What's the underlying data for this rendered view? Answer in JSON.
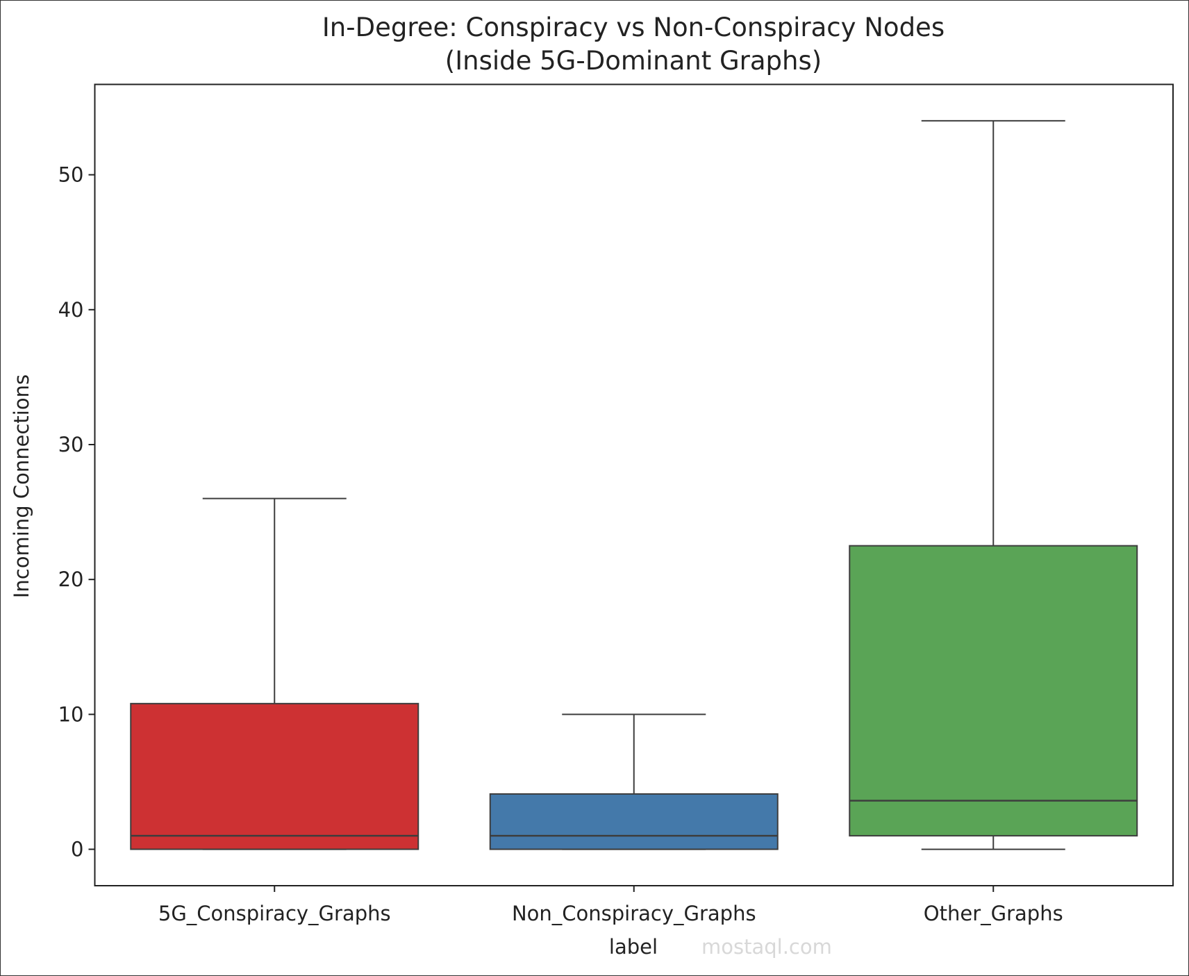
{
  "chart_data": {
    "type": "box",
    "title": "In-Degree: Conspiracy vs Non-Conspiracy Nodes\n(Inside 5G-Dominant Graphs)",
    "title_lines": [
      "In-Degree: Conspiracy vs Non-Conspiracy Nodes",
      "(Inside 5G-Dominant Graphs)"
    ],
    "xlabel": "label",
    "ylabel": "Incoming Connections",
    "categories": [
      "5G_Conspiracy_Graphs",
      "Non_Conspiracy_Graphs",
      "Other_Graphs"
    ],
    "boxes": [
      {
        "category": "5G_Conspiracy_Graphs",
        "whisker_low": 0,
        "q1": 0,
        "median": 1,
        "q3": 10.8,
        "whisker_high": 26,
        "color": "#cd3133"
      },
      {
        "category": "Non_Conspiracy_Graphs",
        "whisker_low": 0,
        "q1": 0,
        "median": 1,
        "q3": 4.1,
        "whisker_high": 10,
        "color": "#4479aa"
      },
      {
        "category": "Other_Graphs",
        "whisker_low": 0,
        "q1": 1,
        "median": 3.6,
        "q3": 22.5,
        "whisker_high": 54,
        "color": "#5aa456"
      }
    ],
    "yticks": [
      0,
      10,
      20,
      30,
      40,
      50
    ],
    "ylim": [
      -2.7,
      56.7
    ],
    "grid": false,
    "legend": "none"
  },
  "watermark": "mostaql.com"
}
